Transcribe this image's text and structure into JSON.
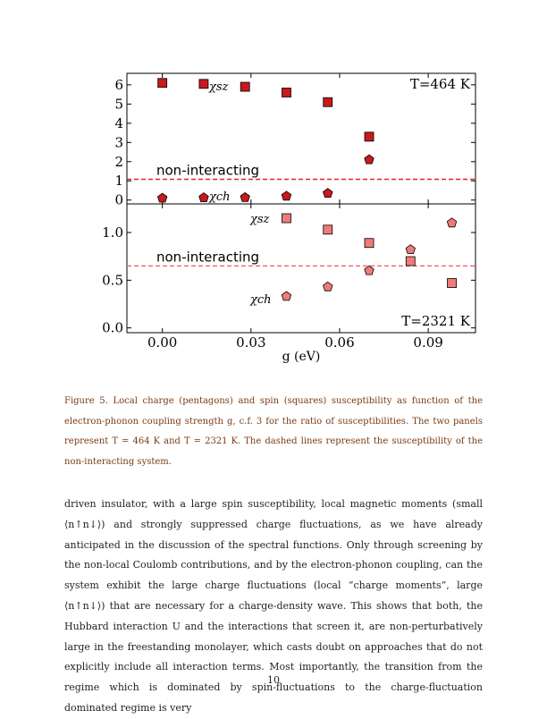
{
  "chart_data": [
    {
      "type": "scatter",
      "panel": "top",
      "annotation_T": "T=464 K",
      "ylim": [
        -0.2,
        6.6
      ],
      "xlim": [
        -0.012,
        0.106
      ],
      "yticks": [
        "0",
        "1",
        "2",
        "3",
        "4",
        "5",
        "6"
      ],
      "yticks_values": [
        0,
        1,
        2,
        3,
        4,
        5,
        6
      ],
      "reference_line": {
        "label": "non-interacting",
        "y": 1.08,
        "color": "#e8202a"
      },
      "series": [
        {
          "name": "χsz",
          "marker": "square",
          "color": "#c8191d",
          "x": [
            0.0,
            0.014,
            0.028,
            0.042,
            0.056,
            0.07
          ],
          "y": [
            6.1,
            6.05,
            5.9,
            5.6,
            5.1,
            3.3
          ]
        },
        {
          "name": "χch",
          "marker": "pentagon",
          "color": "#c8191d",
          "x": [
            0.0,
            0.014,
            0.028,
            0.042,
            0.056,
            0.07
          ],
          "y": [
            0.1,
            0.12,
            0.13,
            0.2,
            0.35,
            2.1
          ]
        }
      ],
      "series_labels": [
        "χsz",
        "χch"
      ]
    },
    {
      "type": "scatter",
      "panel": "bottom",
      "annotation_T": "T=2321 K",
      "ylim": [
        -0.05,
        1.3
      ],
      "xlim": [
        -0.012,
        0.106
      ],
      "yticks": [
        "0.0",
        "0.5",
        "1.0"
      ],
      "yticks_values": [
        0.0,
        0.5,
        1.0
      ],
      "xticks": [
        "0.00",
        "0.03",
        "0.06",
        "0.09"
      ],
      "xticks_values": [
        0.0,
        0.03,
        0.06,
        0.09
      ],
      "xlabel": "g (eV)",
      "reference_line": {
        "label": "non-interacting",
        "y": 0.65,
        "color": "#f06b72"
      },
      "series": [
        {
          "name": "χsz",
          "marker": "square",
          "color": "#f07a7a",
          "x": [
            0.042,
            0.056,
            0.07,
            0.084,
            0.098
          ],
          "y": [
            1.15,
            1.03,
            0.89,
            0.7,
            0.47
          ]
        },
        {
          "name": "χch",
          "marker": "pentagon",
          "color": "#f07a7a",
          "x": [
            0.042,
            0.056,
            0.07,
            0.084,
            0.098
          ],
          "y": [
            0.33,
            0.43,
            0.6,
            0.82,
            1.1
          ]
        }
      ],
      "series_labels": [
        "χsz",
        "χch"
      ]
    }
  ],
  "caption": {
    "label": "Figure 5.",
    "text": "Local charge (pentagons) and spin (squares) susceptibility as function of the electron-phonon coupling strength g, c.f. 3 for the ratio of susceptibilities. The two panels represent T = 464 K and T = 2321 K. The dashed lines represent the susceptibility of the non-interacting system."
  },
  "body_text": "driven insulator, with a large spin susceptibility, local magnetic moments (small ⟨n↑n↓⟩) and strongly suppressed charge fluctuations, as we have already anticipated in the discussion of the spectral functions. Only through screening by the non-local Coulomb contributions, and by the electron-phonon coupling, can the system exhibit the large charge fluctuations (local “charge moments”, large ⟨n↑n↓⟩) that are necessary for a charge-density wave. This shows that both, the Hubbard interaction U and the interactions that screen it, are non-perturbatively large in the freestanding monolayer, which casts doubt on approaches that do not explicitly include all interaction terms. Most importantly, the transition from the regime which is dominated by spin-fluctuations to the charge-fluctuation dominated regime is very",
  "page_number": "10"
}
